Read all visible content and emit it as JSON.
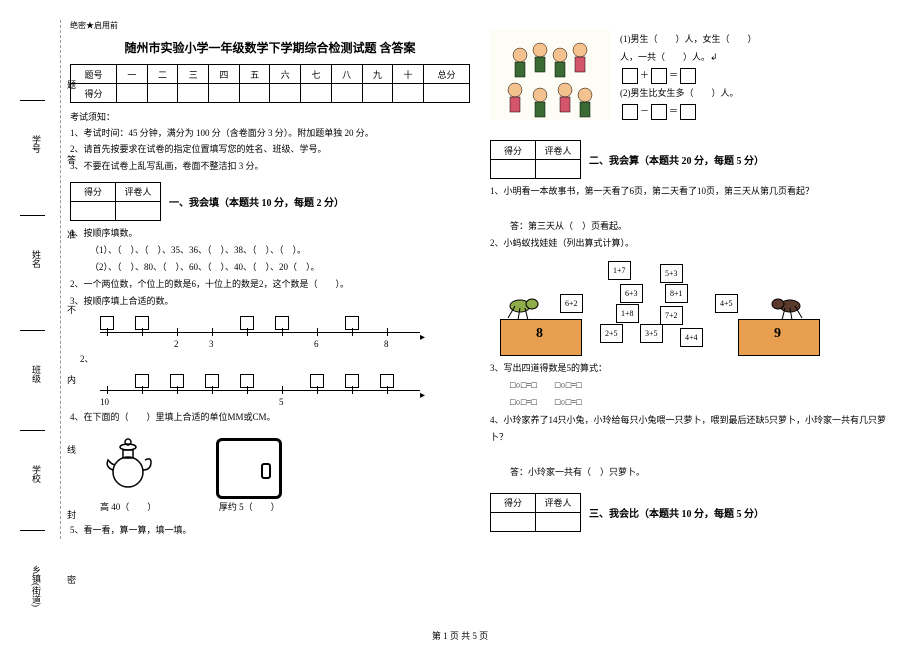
{
  "secret": "绝密★启用前",
  "title": "随州市实验小学一年级数学下学期综合检测试题 含答案",
  "score_table": {
    "headers": [
      "题号",
      "一",
      "二",
      "三",
      "四",
      "五",
      "六",
      "七",
      "八",
      "九",
      "十",
      "总分"
    ],
    "row_label": "得分"
  },
  "exam_notes_title": "考试须知：",
  "exam_notes": [
    "1、考试时间：45 分钟，满分为 100 分（含卷面分 3 分）。附加题单独 20 分。",
    "2、请首先按要求在试卷的指定位置填写您的姓名、班级、学号。",
    "3、不要在试卷上乱写乱画，卷面不整洁扣 3 分。"
  ],
  "mini": {
    "c1": "得分",
    "c2": "评卷人"
  },
  "section1": {
    "title": "一、我会填（本题共 10 分，每题 2 分）",
    "q1": "1、按顺序填数。",
    "q1a": "（1）、（　）、（　）、35、36、（　）、38、（　）、（　）。",
    "q1b": "（2）、（　）、80、（　）、60、（　）、40、（　）、20（　）。",
    "q2": "2、一个两位数，个位上的数是6，十位上的数是2，这个数是（　　）。",
    "q3": "3、按顺序填上合适的数。",
    "nl1_nums": [
      "2",
      "3",
      "6",
      "8"
    ],
    "nl2_nums": [
      "10",
      "5"
    ],
    "nl2_label": "2、",
    "q4": "4、在下面的（　　）里填上合适的单位MM或CM。",
    "q4_teapot": "高 40（　　）",
    "q4_wallet": "厚约 5（　　）",
    "q5": "5、看一看，算一算，填一填。"
  },
  "q5_right": {
    "l1": "(1)男生（　　）人，女生（　　）",
    "l2": "人，一共（　　）人。↲",
    "eq1_op": "＋",
    "eq_eq": "＝",
    "l3": "(2)男生比女生多（　　）人。",
    "eq2_op": "－"
  },
  "section2": {
    "title": "二、我会算（本题共 20 分，每题 5 分）",
    "q1": "1、小明看一本故事书，第一天看了6页，第二天看了10页，第三天从第几页看起？",
    "q1_ans": "答：第三天从（　）页看起。",
    "q2": "2、小蚂蚁找娃娃（列出算式计算）。",
    "cards": [
      "1+7",
      "5+3",
      "6+3",
      "8+1",
      "6+2",
      "1+8",
      "4+5",
      "2+5",
      "3+5",
      "7+2",
      "4+4"
    ],
    "box_l": "8",
    "box_r": "9",
    "q3": "3、写出四道得数是5的算式：",
    "q3_blank": "□○□=□　　□○□=□",
    "q4": "4、小玲家养了14只小兔，小玲给每只小兔喂一只萝卜，喂到最后还缺5只萝卜，小玲家一共有几只萝卜？",
    "q4_ans": "答：小玲家一共有（　）只萝卜。"
  },
  "section3": {
    "title": "三、我会比（本题共 10 分，每题 5 分）"
  },
  "binding": {
    "fields": [
      "乡镇(街道)",
      "学校",
      "班级",
      "姓名",
      "学号"
    ],
    "marks": [
      "密",
      "封",
      "线",
      "内",
      "不",
      "准",
      "答",
      "题"
    ]
  },
  "footer": "第 1 页 共 5 页"
}
